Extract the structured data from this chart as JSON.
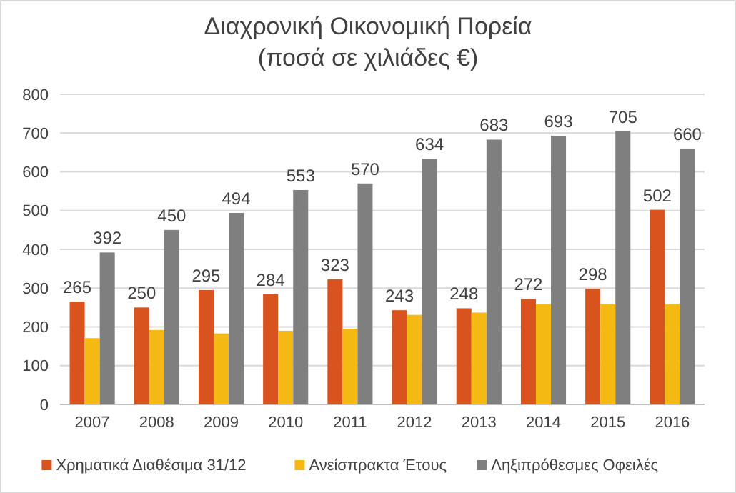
{
  "chart_data": {
    "type": "bar",
    "title": "Διαχρονική Οικονομική Πορεία",
    "subtitle": "(ποσά σε χιλιάδες €)",
    "categories": [
      "2007",
      "2008",
      "2009",
      "2010",
      "2011",
      "2012",
      "2013",
      "2014",
      "2015",
      "2016"
    ],
    "series": [
      {
        "name": "Χρηματικά Διαθέσιμα 31/12",
        "color": "#d9531e",
        "values": [
          265,
          250,
          295,
          284,
          323,
          243,
          248,
          272,
          298,
          502
        ],
        "value_labels": [
          "265",
          "250",
          "295",
          "284",
          "323",
          "243",
          "248",
          "272",
          "298",
          "502"
        ]
      },
      {
        "name": "Ανείσπρακτα Έτους",
        "color": "#f5b914",
        "values": [
          171,
          192,
          183,
          190,
          195,
          231,
          237,
          258,
          258,
          258
        ]
      },
      {
        "name": "Ληξιπρόθεσμες Οφειλές",
        "color": "#7f7f7f",
        "values": [
          392,
          450,
          494,
          553,
          570,
          634,
          683,
          693,
          705,
          660
        ],
        "value_labels": [
          "392",
          "450",
          "494",
          "553",
          "570",
          "634",
          "683",
          "693",
          "705",
          "660"
        ]
      }
    ],
    "ylim": [
      0,
      800
    ],
    "yticks": [
      0,
      100,
      200,
      300,
      400,
      500,
      600,
      700,
      800
    ],
    "grid": "y",
    "legend": "bottom"
  }
}
